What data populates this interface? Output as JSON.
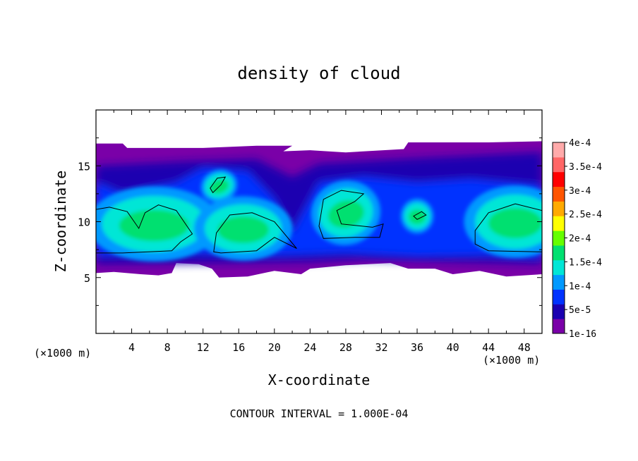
{
  "chart_data": {
    "type": "heatmap",
    "title": "density of cloud",
    "xlabel": "X-coordinate",
    "ylabel": "Z-coordinate",
    "x_unit": "(×1000 m)",
    "y_unit": "(×1000 m)",
    "xlim": [
      0,
      50
    ],
    "ylim": [
      0,
      20
    ],
    "x_ticks": [
      4,
      8,
      12,
      16,
      20,
      24,
      28,
      32,
      36,
      40,
      44,
      48
    ],
    "y_ticks": [
      5,
      10,
      15
    ],
    "grid": false,
    "footer": "CONTOUR INTERVAL = 1.000E-04",
    "colorbar": {
      "placement": "right",
      "labels": [
        "4e-4",
        "3.5e-4",
        "3e-4",
        "2.5e-4",
        "2e-4",
        "1.5e-4",
        "1e-4",
        "5e-5",
        "1e-16"
      ],
      "levels": [
        1e-16,
        5e-05,
        0.0001,
        0.00015,
        0.0002,
        0.00025,
        0.0003,
        0.00035,
        0.0004
      ],
      "colors": [
        "#7a00a8",
        "#1a00b0",
        "#0033ff",
        "#0099ff",
        "#00e6d6",
        "#00e070",
        "#66ff00",
        "#ffff00",
        "#ffaa00",
        "#ff5500",
        "#ff0000",
        "#ff6666",
        "#ffaaaa"
      ]
    },
    "contour_interval": 0.0001,
    "cloud_top_z": 17,
    "cloud_base_z": 5.3,
    "cells": [
      {
        "x": 6,
        "z": 9.8,
        "value": 0.00019
      },
      {
        "x": 16.5,
        "z": 9.5,
        "value": 0.0002
      },
      {
        "x": 28,
        "z": 11,
        "value": 0.00018
      },
      {
        "x": 47,
        "z": 10,
        "value": 0.00019
      },
      {
        "x": 13.8,
        "z": 13.3,
        "value": 0.00013
      },
      {
        "x": 36,
        "z": 10.5,
        "value": 0.00011
      }
    ]
  }
}
